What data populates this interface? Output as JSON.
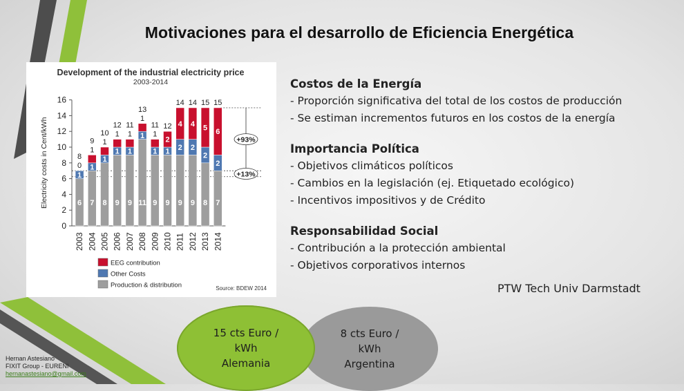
{
  "slide": {
    "title": "Motivaciones para el desarrollo de Eficiencia Energética",
    "credit": "PTW Tech Univ Darmstadt"
  },
  "sections": [
    {
      "heading": "Costos de la Energía",
      "items": [
        "- Proporción significativa del total de los costos de producción",
        "- Se estiman incrementos futuros en los costos de la energía"
      ]
    },
    {
      "heading": "Importancia Política",
      "items": [
        "-  Objetivos climáticos políticos",
        "-  Cambios en la legislación (ej. Etiquetado ecológico)",
        "-   Incentivos impositivos y de Crédito"
      ]
    },
    {
      "heading": "Responsabilidad Social",
      "items": [
        "- Contribución a la protección ambiental",
        "- Objetivos corporativos internos"
      ]
    }
  ],
  "comparison": {
    "germany": {
      "line1": "15 cts Euro /",
      "line2": "kWh",
      "line3": "Alemania"
    },
    "argentina": {
      "line1": "8 cts Euro /",
      "line2": "kWh",
      "line3": "Argentina"
    }
  },
  "author": {
    "name": "Hernan Astesiano",
    "org": "FIXIT Group - EURENI",
    "email": "hernanastesiano@gmail.com"
  },
  "colors": {
    "eeg": "#c8102e",
    "other": "#4f78b1",
    "production": "#9e9e9e",
    "green": "#8ec035",
    "gray": "#9a9a9a"
  },
  "chart_data": {
    "type": "bar",
    "stacked": true,
    "title": "Development of the industrial electricity price",
    "subtitle": "2003-2014",
    "ylabel": "Electricity costs in Cent/kWh",
    "xlabel": "",
    "ylim": [
      0,
      16
    ],
    "yticks": [
      0,
      2,
      4,
      6,
      8,
      10,
      12,
      14,
      16
    ],
    "categories": [
      "2003",
      "2004",
      "2005",
      "2006",
      "2007",
      "2008",
      "2009",
      "2010",
      "2011",
      "2012",
      "2013",
      "2014"
    ],
    "series": [
      {
        "name": "Production & distribution",
        "values": [
          6,
          7,
          8,
          9,
          9,
          11,
          9,
          9,
          9,
          9,
          8,
          7
        ]
      },
      {
        "name": "Other Costs",
        "values": [
          1,
          1,
          1,
          1,
          1,
          1,
          1,
          1,
          2,
          2,
          2,
          2
        ]
      },
      {
        "name": "EEG contribution",
        "values": [
          0,
          1,
          1,
          1,
          1,
          1,
          1,
          2,
          4,
          4,
          5,
          6
        ]
      }
    ],
    "seg_labels": [
      [
        "6",
        "7",
        "8",
        "9",
        "9",
        "11",
        "9",
        "9",
        "9",
        "9",
        "8",
        "7"
      ],
      [
        "1",
        "1",
        "1",
        "1",
        "1",
        "1",
        "1",
        "1",
        "2",
        "2",
        "2",
        "2"
      ],
      [
        "",
        "",
        "",
        "",
        "",
        "",
        "",
        "2",
        "4",
        "4",
        "5",
        "6"
      ]
    ],
    "top_labels": [
      "8",
      "9",
      "10",
      "12",
      "11",
      "13",
      "11",
      "12",
      "14",
      "14",
      "15",
      "15"
    ],
    "extra_labels": [
      "0",
      "1",
      "1",
      "1",
      "1",
      "1",
      "1",
      "",
      "",
      "",
      "",
      ""
    ],
    "legend": [
      "EEG contribution",
      "Other Costs",
      "Production & distribution"
    ],
    "annotations": [
      "+93%",
      "+13%"
    ],
    "source": "Source: BDEW 2014"
  }
}
